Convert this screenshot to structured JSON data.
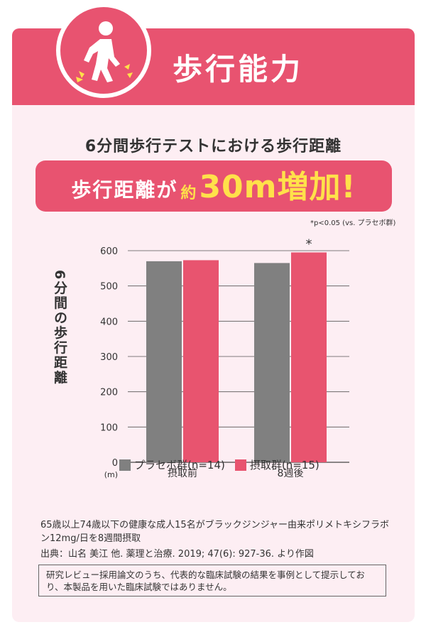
{
  "header": {
    "title": "歩行能力",
    "icon": "walking-person-icon"
  },
  "chart_title": "6分間歩行テストにおける歩行距離",
  "banner": {
    "text1": "歩行距離が",
    "approx": "約",
    "value": "30m",
    "text2": "増加!"
  },
  "significance_note": "*p<0.05 (vs. プラセボ群)",
  "colors": {
    "accent": "#e85370",
    "placebo": "#808080",
    "intake": "#e8546f",
    "highlight": "#ffe14a"
  },
  "chart_data": {
    "type": "bar",
    "categories": [
      "摂取前",
      "8週後"
    ],
    "series": [
      {
        "name": "プラセボ群(n=14)",
        "values": [
          570,
          565
        ]
      },
      {
        "name": "摂取群(n=15)",
        "values": [
          573,
          595
        ]
      }
    ],
    "ylabel": "6分間の歩行距離",
    "y_unit": "(m)",
    "ylim": [
      0,
      600
    ],
    "yticks": [
      0,
      100,
      200,
      300,
      400,
      500,
      600
    ],
    "grid": true,
    "legend": "bottom",
    "annotations": [
      {
        "category": "8週後",
        "series": "摂取群(n=15)",
        "text": "*"
      }
    ]
  },
  "notes": "65歳以上74歳以下の健康な成人15名がブラックジンジャー由来ポリメトキシフラボン12mg/日を8週間摂取",
  "source": "出典：山名 美江 他. 薬理と治療. 2019; 47(6): 927-36. より作図",
  "disclaimer": "研究レビュー採用論文のうち、代表的な臨床試験の結果を事例として提示しており、本製品を用いた臨床試験ではありません。"
}
